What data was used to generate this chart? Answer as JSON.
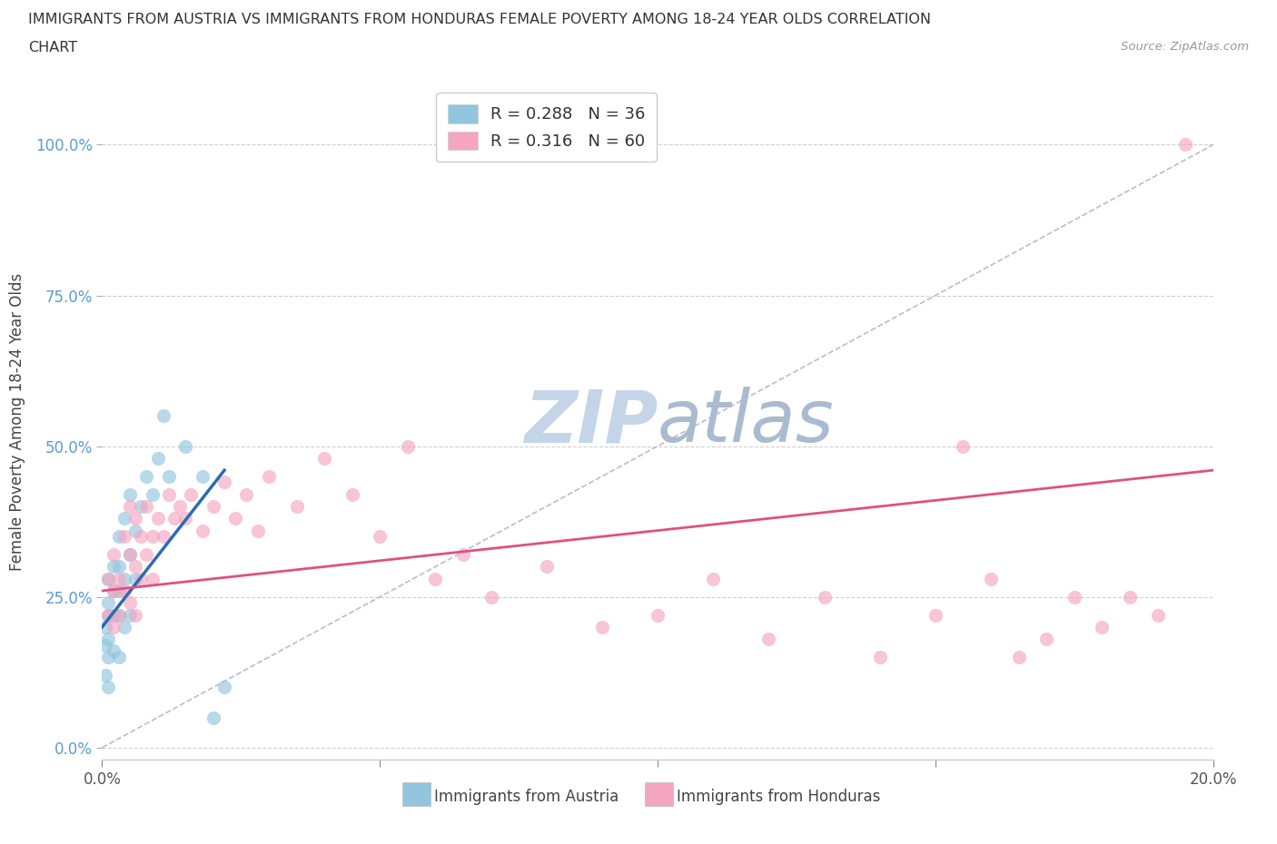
{
  "title_line1": "IMMIGRANTS FROM AUSTRIA VS IMMIGRANTS FROM HONDURAS FEMALE POVERTY AMONG 18-24 YEAR OLDS CORRELATION",
  "title_line2": "CHART",
  "source": "Source: ZipAtlas.com",
  "ylabel": "Female Poverty Among 18-24 Year Olds",
  "xlabel_austria": "Immigrants from Austria",
  "xlabel_honduras": "Immigrants from Honduras",
  "austria_R": 0.288,
  "austria_N": 36,
  "honduras_R": 0.316,
  "honduras_N": 60,
  "austria_color": "#92c5de",
  "honduras_color": "#f4a6c0",
  "austria_line_color": "#2b6cb0",
  "honduras_line_color": "#e05080",
  "diagonal_color": "#aaaacc",
  "xlim": [
    0.0,
    0.2
  ],
  "ylim": [
    -0.02,
    1.1
  ],
  "xticks": [
    0.0,
    0.05,
    0.1,
    0.15,
    0.2
  ],
  "yticks": [
    0.0,
    0.25,
    0.5,
    0.75,
    1.0
  ],
  "austria_x": [
    0.0005,
    0.0005,
    0.0005,
    0.001,
    0.001,
    0.001,
    0.001,
    0.001,
    0.001,
    0.002,
    0.002,
    0.002,
    0.002,
    0.003,
    0.003,
    0.003,
    0.003,
    0.003,
    0.004,
    0.004,
    0.004,
    0.005,
    0.005,
    0.005,
    0.006,
    0.006,
    0.007,
    0.008,
    0.009,
    0.01,
    0.011,
    0.012,
    0.015,
    0.018,
    0.02,
    0.022
  ],
  "austria_y": [
    0.2,
    0.17,
    0.12,
    0.28,
    0.24,
    0.22,
    0.18,
    0.15,
    0.1,
    0.3,
    0.26,
    0.22,
    0.16,
    0.35,
    0.3,
    0.26,
    0.22,
    0.15,
    0.38,
    0.28,
    0.2,
    0.42,
    0.32,
    0.22,
    0.36,
    0.28,
    0.4,
    0.45,
    0.42,
    0.48,
    0.55,
    0.45,
    0.5,
    0.45,
    0.05,
    0.1
  ],
  "austria_line_x": [
    0.0,
    0.022
  ],
  "austria_line_y": [
    0.2,
    0.46
  ],
  "honduras_x": [
    0.001,
    0.001,
    0.002,
    0.002,
    0.002,
    0.003,
    0.003,
    0.004,
    0.004,
    0.005,
    0.005,
    0.005,
    0.006,
    0.006,
    0.006,
    0.007,
    0.007,
    0.008,
    0.008,
    0.009,
    0.009,
    0.01,
    0.011,
    0.012,
    0.013,
    0.014,
    0.015,
    0.016,
    0.018,
    0.02,
    0.022,
    0.024,
    0.026,
    0.028,
    0.03,
    0.035,
    0.04,
    0.045,
    0.05,
    0.055,
    0.06,
    0.065,
    0.07,
    0.08,
    0.09,
    0.1,
    0.11,
    0.12,
    0.13,
    0.14,
    0.15,
    0.155,
    0.16,
    0.165,
    0.17,
    0.175,
    0.18,
    0.185,
    0.19,
    0.195
  ],
  "honduras_y": [
    0.28,
    0.22,
    0.32,
    0.26,
    0.2,
    0.28,
    0.22,
    0.35,
    0.26,
    0.4,
    0.32,
    0.24,
    0.38,
    0.3,
    0.22,
    0.35,
    0.28,
    0.4,
    0.32,
    0.35,
    0.28,
    0.38,
    0.35,
    0.42,
    0.38,
    0.4,
    0.38,
    0.42,
    0.36,
    0.4,
    0.44,
    0.38,
    0.42,
    0.36,
    0.45,
    0.4,
    0.48,
    0.42,
    0.35,
    0.5,
    0.28,
    0.32,
    0.25,
    0.3,
    0.2,
    0.22,
    0.28,
    0.18,
    0.25,
    0.15,
    0.22,
    0.5,
    0.28,
    0.15,
    0.18,
    0.25,
    0.2,
    0.25,
    0.22,
    1.0
  ],
  "watermark_zip": "ZIP",
  "watermark_atlas": "atlas",
  "watermark_color_zip": "#c5d5e8",
  "watermark_color_atlas": "#aabbd0"
}
